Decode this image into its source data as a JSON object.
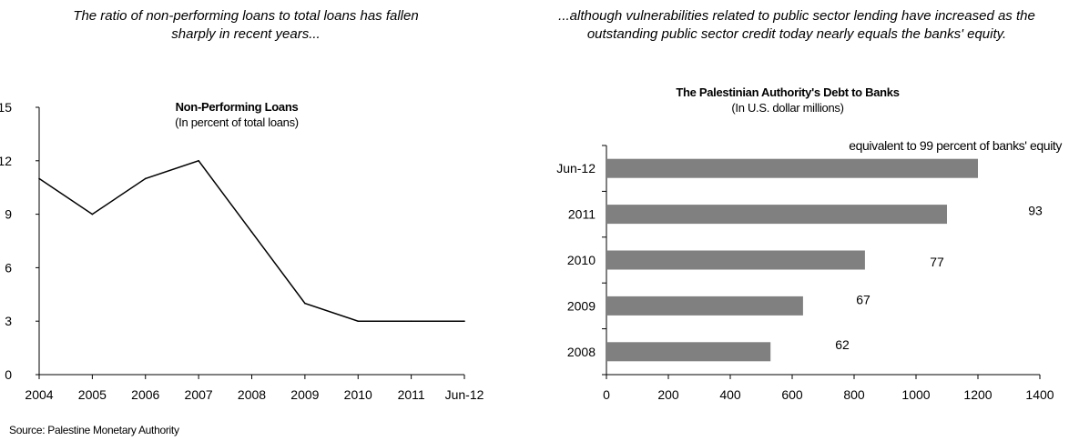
{
  "captions": {
    "left": "The ratio of non-performing  loans to total loans has fallen sharply in recent years...",
    "right": "...although vulnerabilities related to public sector lending have increased as the outstanding public sector credit today nearly equals the banks' equity."
  },
  "source": "Source: Palestine Monetary Authority",
  "chart_data": [
    {
      "type": "line",
      "title": "Non-Performing Loans",
      "subtitle": "(In percent of total loans)",
      "categories": [
        "2004",
        "2005",
        "2006",
        "2007",
        "2008",
        "2009",
        "2010",
        "2011",
        "Jun-12"
      ],
      "values": [
        11,
        9,
        11,
        12,
        8,
        4,
        3,
        3,
        3
      ],
      "ylim": [
        0,
        15
      ],
      "yticks": [
        0,
        3,
        6,
        9,
        12,
        15
      ],
      "grid": false,
      "line_color": "#000000"
    },
    {
      "type": "bar",
      "orientation": "horizontal",
      "title": "The Palestinian Authority's Debt to Banks",
      "subtitle": "(In U.S. dollar millions)",
      "categories": [
        "Jun-12",
        "2011",
        "2010",
        "2009",
        "2008"
      ],
      "values": [
        1200,
        1100,
        835,
        635,
        530
      ],
      "annotations": [
        "equivalent to 99 percent of banks' equity",
        "93",
        "77",
        "67",
        "62"
      ],
      "xlim": [
        0,
        1400
      ],
      "xticks": [
        0,
        200,
        400,
        600,
        800,
        1000,
        1200,
        1400
      ],
      "grid": false,
      "bar_color": "#808080"
    }
  ]
}
